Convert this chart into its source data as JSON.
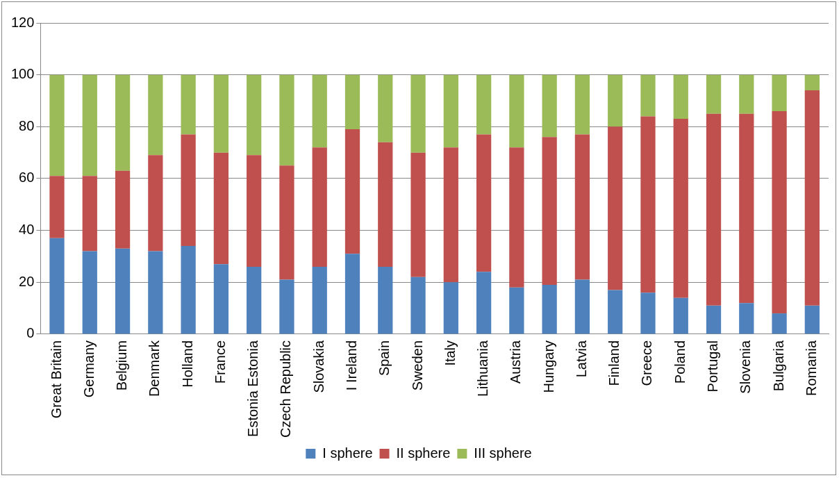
{
  "chart_data": {
    "type": "bar",
    "stacked": true,
    "categories": [
      "Great Britain",
      "Germany",
      "Belgium",
      "Denmark",
      "Holland",
      "France",
      "Estonia Estonia",
      "Czech Republic",
      "Slovakia",
      "I Ireland",
      "Spain",
      "Sweden",
      "Italy",
      "Lithuania",
      "Austria",
      "Hungary",
      "Latvia",
      "Finland",
      "Greece",
      "Poland",
      "Portugal",
      "Slovenia",
      "Bulgaria",
      "Romania"
    ],
    "series": [
      {
        "name": "I sphere",
        "color": "#4f81bd",
        "values": [
          37,
          32,
          33,
          32,
          34,
          27,
          26,
          21,
          26,
          31,
          26,
          22,
          20,
          24,
          18,
          19,
          21,
          17,
          16,
          14,
          11,
          12,
          8,
          11
        ]
      },
      {
        "name": "II sphere",
        "color": "#c0504d",
        "values": [
          24,
          29,
          30,
          37,
          43,
          43,
          43,
          44,
          46,
          48,
          48,
          48,
          52,
          53,
          54,
          57,
          56,
          63,
          68,
          69,
          74,
          73,
          78,
          83
        ]
      },
      {
        "name": "III sphere",
        "color": "#9bbb59",
        "values": [
          39,
          39,
          37,
          31,
          23,
          30,
          31,
          35,
          28,
          21,
          26,
          30,
          28,
          23,
          28,
          24,
          23,
          20,
          16,
          17,
          15,
          15,
          14,
          6
        ]
      }
    ],
    "ylim": [
      0,
      120
    ],
    "yticks": [
      0,
      20,
      40,
      60,
      80,
      100,
      120
    ],
    "grid": "y",
    "legend": "bottom"
  }
}
